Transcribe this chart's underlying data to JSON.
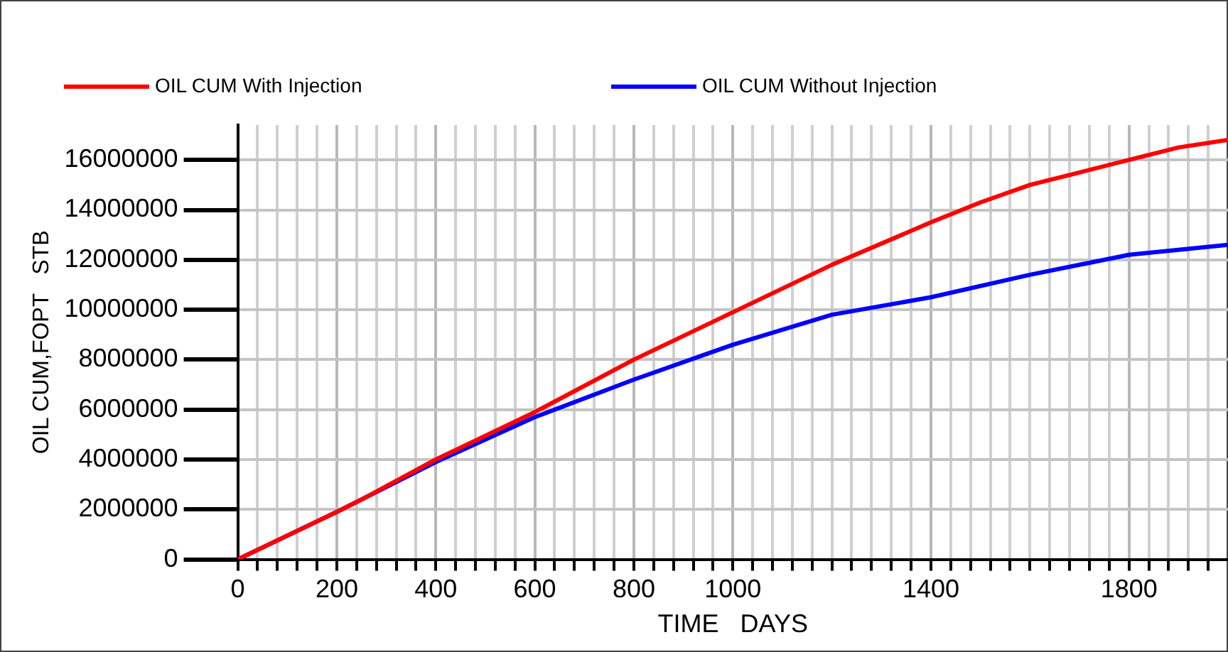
{
  "chart_data": {
    "type": "line",
    "xlabel": "TIME   DAYS",
    "ylabel": "OIL CUM,FOPT   STB",
    "series": [
      {
        "name": "OIL CUM With Injection",
        "color": "#ff0000",
        "x": [
          0,
          200,
          260,
          400,
          600,
          800,
          1000,
          1200,
          1400,
          1500,
          1600,
          1700,
          1800,
          1900,
          2000
        ],
        "values": [
          0,
          1900000,
          2500000,
          4000000,
          5900000,
          8000000,
          9900000,
          11800000,
          13500000,
          14300000,
          15000000,
          15500000,
          16000000,
          16500000,
          16800000
        ]
      },
      {
        "name": "OIL CUM Without Injection",
        "color": "#0000ff",
        "x": [
          0,
          200,
          260,
          400,
          600,
          800,
          1000,
          1200,
          1400,
          1600,
          1800,
          1900,
          2000
        ],
        "values": [
          0,
          1900000,
          2500000,
          3900000,
          5700000,
          7200000,
          8600000,
          9800000,
          10500000,
          11400000,
          12200000,
          12400000,
          12600000
        ]
      }
    ],
    "xlim": [
      0,
      2000
    ],
    "xticks": [
      0,
      {
        "value": 40,
        "label": null
      },
      {
        "value": 80,
        "label": null
      },
      {
        "value": 120,
        "label": null
      },
      {
        "value": 160,
        "label": null
      },
      200,
      {
        "value": 240,
        "label": null
      },
      {
        "value": 280,
        "label": null
      },
      {
        "value": 320,
        "label": null
      },
      {
        "value": 360,
        "label": null
      },
      400,
      {
        "value": 440,
        "label": null
      },
      {
        "value": 480,
        "label": null
      },
      {
        "value": 520,
        "label": null
      },
      {
        "value": 560,
        "label": null
      },
      600,
      {
        "value": 640,
        "label": null
      },
      {
        "value": 680,
        "label": null
      },
      {
        "value": 720,
        "label": null
      },
      {
        "value": 760,
        "label": null
      },
      800,
      {
        "value": 840,
        "label": null
      },
      {
        "value": 880,
        "label": null
      },
      {
        "value": 920,
        "label": null
      },
      {
        "value": 960,
        "label": null
      },
      1000,
      {
        "value": 1040,
        "label": null
      },
      {
        "value": 1080,
        "label": null
      },
      {
        "value": 1120,
        "label": null
      },
      {
        "value": 1160,
        "label": null
      },
      {
        "value": 1200,
        "label": null
      },
      {
        "value": 1240,
        "label": null
      },
      {
        "value": 1280,
        "label": null
      },
      {
        "value": 1320,
        "label": null
      },
      {
        "value": 1360,
        "label": null
      },
      1400,
      {
        "value": 1440,
        "label": null
      },
      {
        "value": 1480,
        "label": null
      },
      {
        "value": 1520,
        "label": null
      },
      {
        "value": 1560,
        "label": null
      },
      {
        "value": 1600,
        "label": null
      },
      {
        "value": 1640,
        "label": null
      },
      {
        "value": 1680,
        "label": null
      },
      {
        "value": 1720,
        "label": null
      },
      {
        "value": 1760,
        "label": null
      },
      1800,
      {
        "value": 1840,
        "label": null
      },
      {
        "value": 1880,
        "label": null
      },
      {
        "value": 1920,
        "label": null
      },
      {
        "value": 1960,
        "label": null
      }
    ],
    "ylim": [
      0,
      17400000
    ],
    "yticks": [
      0,
      2000000,
      4000000,
      6000000,
      8000000,
      10000000,
      12000000,
      14000000,
      16000000
    ],
    "grid": true,
    "legend": "top left",
    "marker": "none",
    "line_style": "solid"
  }
}
